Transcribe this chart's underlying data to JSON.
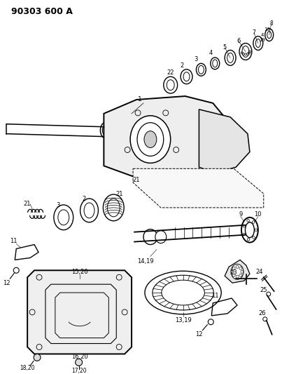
{
  "title": "90303 600 A",
  "bg_color": "#ffffff",
  "line_color": "#000000",
  "fig_width": 4.03,
  "fig_height": 5.33,
  "dpi": 100
}
